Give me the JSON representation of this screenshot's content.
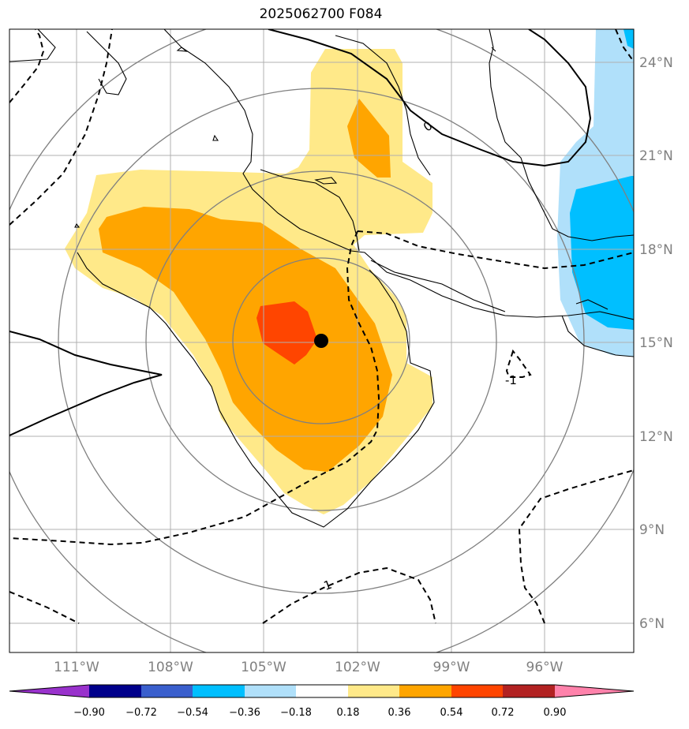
{
  "title": "2025062700 F084",
  "map": {
    "lon_range": [
      -113.5,
      -93.5
    ],
    "lat_range": [
      5,
      25
    ],
    "lon_ticks": [
      "111°W",
      "108°W",
      "105°W",
      "102°W",
      "99°W",
      "96°W"
    ],
    "lat_ticks": [
      "24°N",
      "21°N",
      "18°N",
      "15°N",
      "12°N",
      "9°N",
      "6°N"
    ],
    "storm_center": {
      "lon": -103.4,
      "lat": 15.1
    },
    "range_rings_deg": [
      3,
      5.5,
      8.5
    ],
    "contour_labels": [
      "0",
      "-1",
      "-1"
    ]
  },
  "colorbar": {
    "labels": [
      "−0.90",
      "−0.72",
      "−0.54",
      "−0.36",
      "−0.18",
      "0.18",
      "0.36",
      "0.54",
      "0.72",
      "0.90"
    ],
    "colors": [
      "#9932cc",
      "#00008b",
      "#3a5fcd",
      "#00bfff",
      "#b0e0fa",
      "#ffffff",
      "#ffe989",
      "#ffa500",
      "#ff4500",
      "#b22222",
      "#ff82ab"
    ]
  }
}
